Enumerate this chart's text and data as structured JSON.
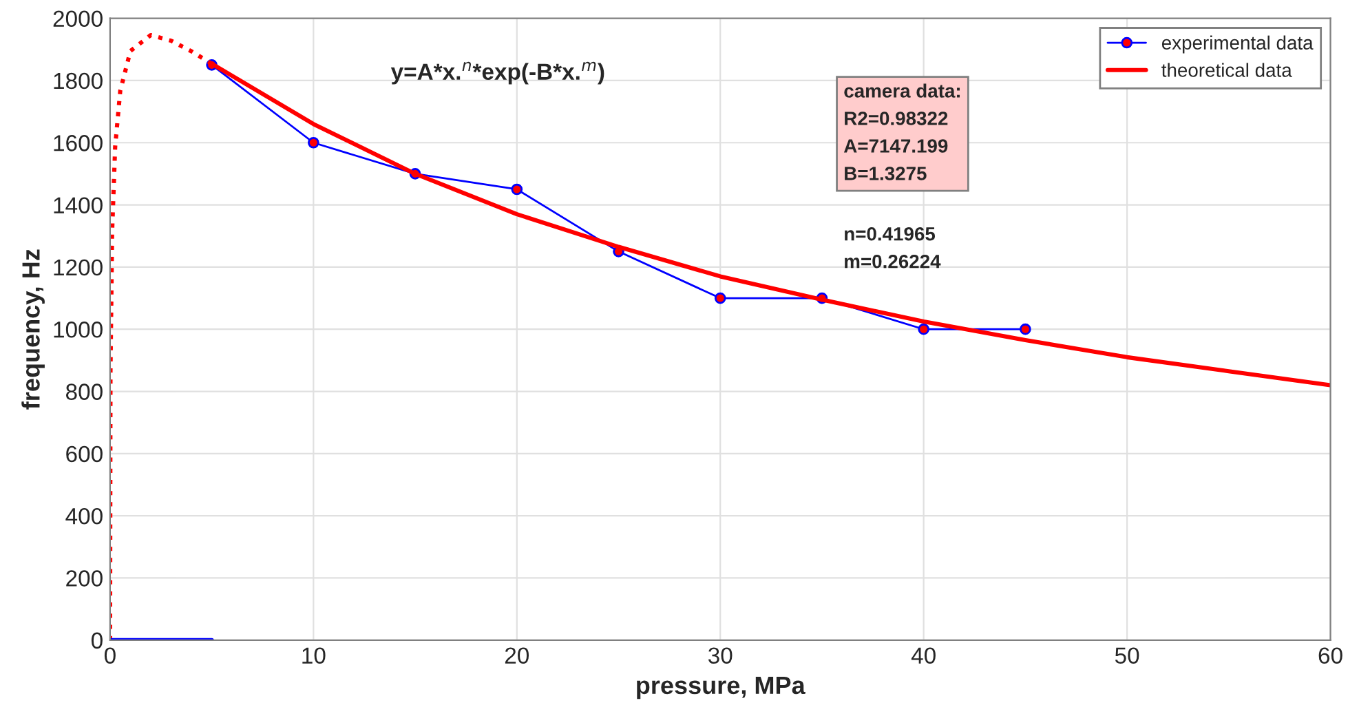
{
  "chart_data": {
    "type": "line",
    "xlabel": "pressure, MPa",
    "ylabel": "frequency, Hz",
    "series": [
      {
        "name": "experimental data",
        "color": "#0000ff",
        "marker": "circle",
        "x": [
          5,
          10,
          15,
          20,
          25,
          30,
          35,
          40,
          45
        ],
        "values": [
          1850,
          1600,
          1500,
          1450,
          1250,
          1100,
          1100,
          1000,
          1000
        ]
      },
      {
        "name": "theoretical data",
        "color": "#ff0000",
        "marker": "none",
        "x": [
          5,
          10,
          15,
          20,
          25,
          30,
          35,
          40,
          45,
          50,
          55,
          60
        ],
        "values": [
          1854,
          1660,
          1500,
          1370,
          1265,
          1170,
          1095,
          1025,
          965,
          910,
          865,
          820
        ]
      },
      {
        "color": "#ff0000",
        "marker": "none",
        "line_style": "dotted",
        "x": [
          0,
          0.02,
          0.1,
          0.25,
          0.5,
          1,
          2,
          3,
          4,
          5
        ],
        "values": [
          0,
          861,
          1314,
          1587,
          1767,
          1895,
          1946,
          1928,
          1894,
          1854
        ]
      },
      {
        "color": "#0000ff",
        "marker": "none",
        "x": [
          0,
          5
        ],
        "values": [
          0,
          0
        ]
      }
    ],
    "xlim": [
      0,
      60
    ],
    "xticks": [
      0,
      10,
      20,
      30,
      40,
      50,
      60
    ],
    "ylim": [
      0,
      2000
    ],
    "yticks": [
      0,
      200,
      400,
      600,
      800,
      1000,
      1200,
      1400,
      1600,
      1800,
      2000
    ],
    "grid": true,
    "legend": "top right",
    "annotations": [
      "y=A*x.$^{n}$*exp(-B*x.$^{m}$)",
      "camera data:\nR2=0.98322\nA=7147.199\nB=1.3275",
      "n=0.41965\nm=0.26224"
    ]
  }
}
